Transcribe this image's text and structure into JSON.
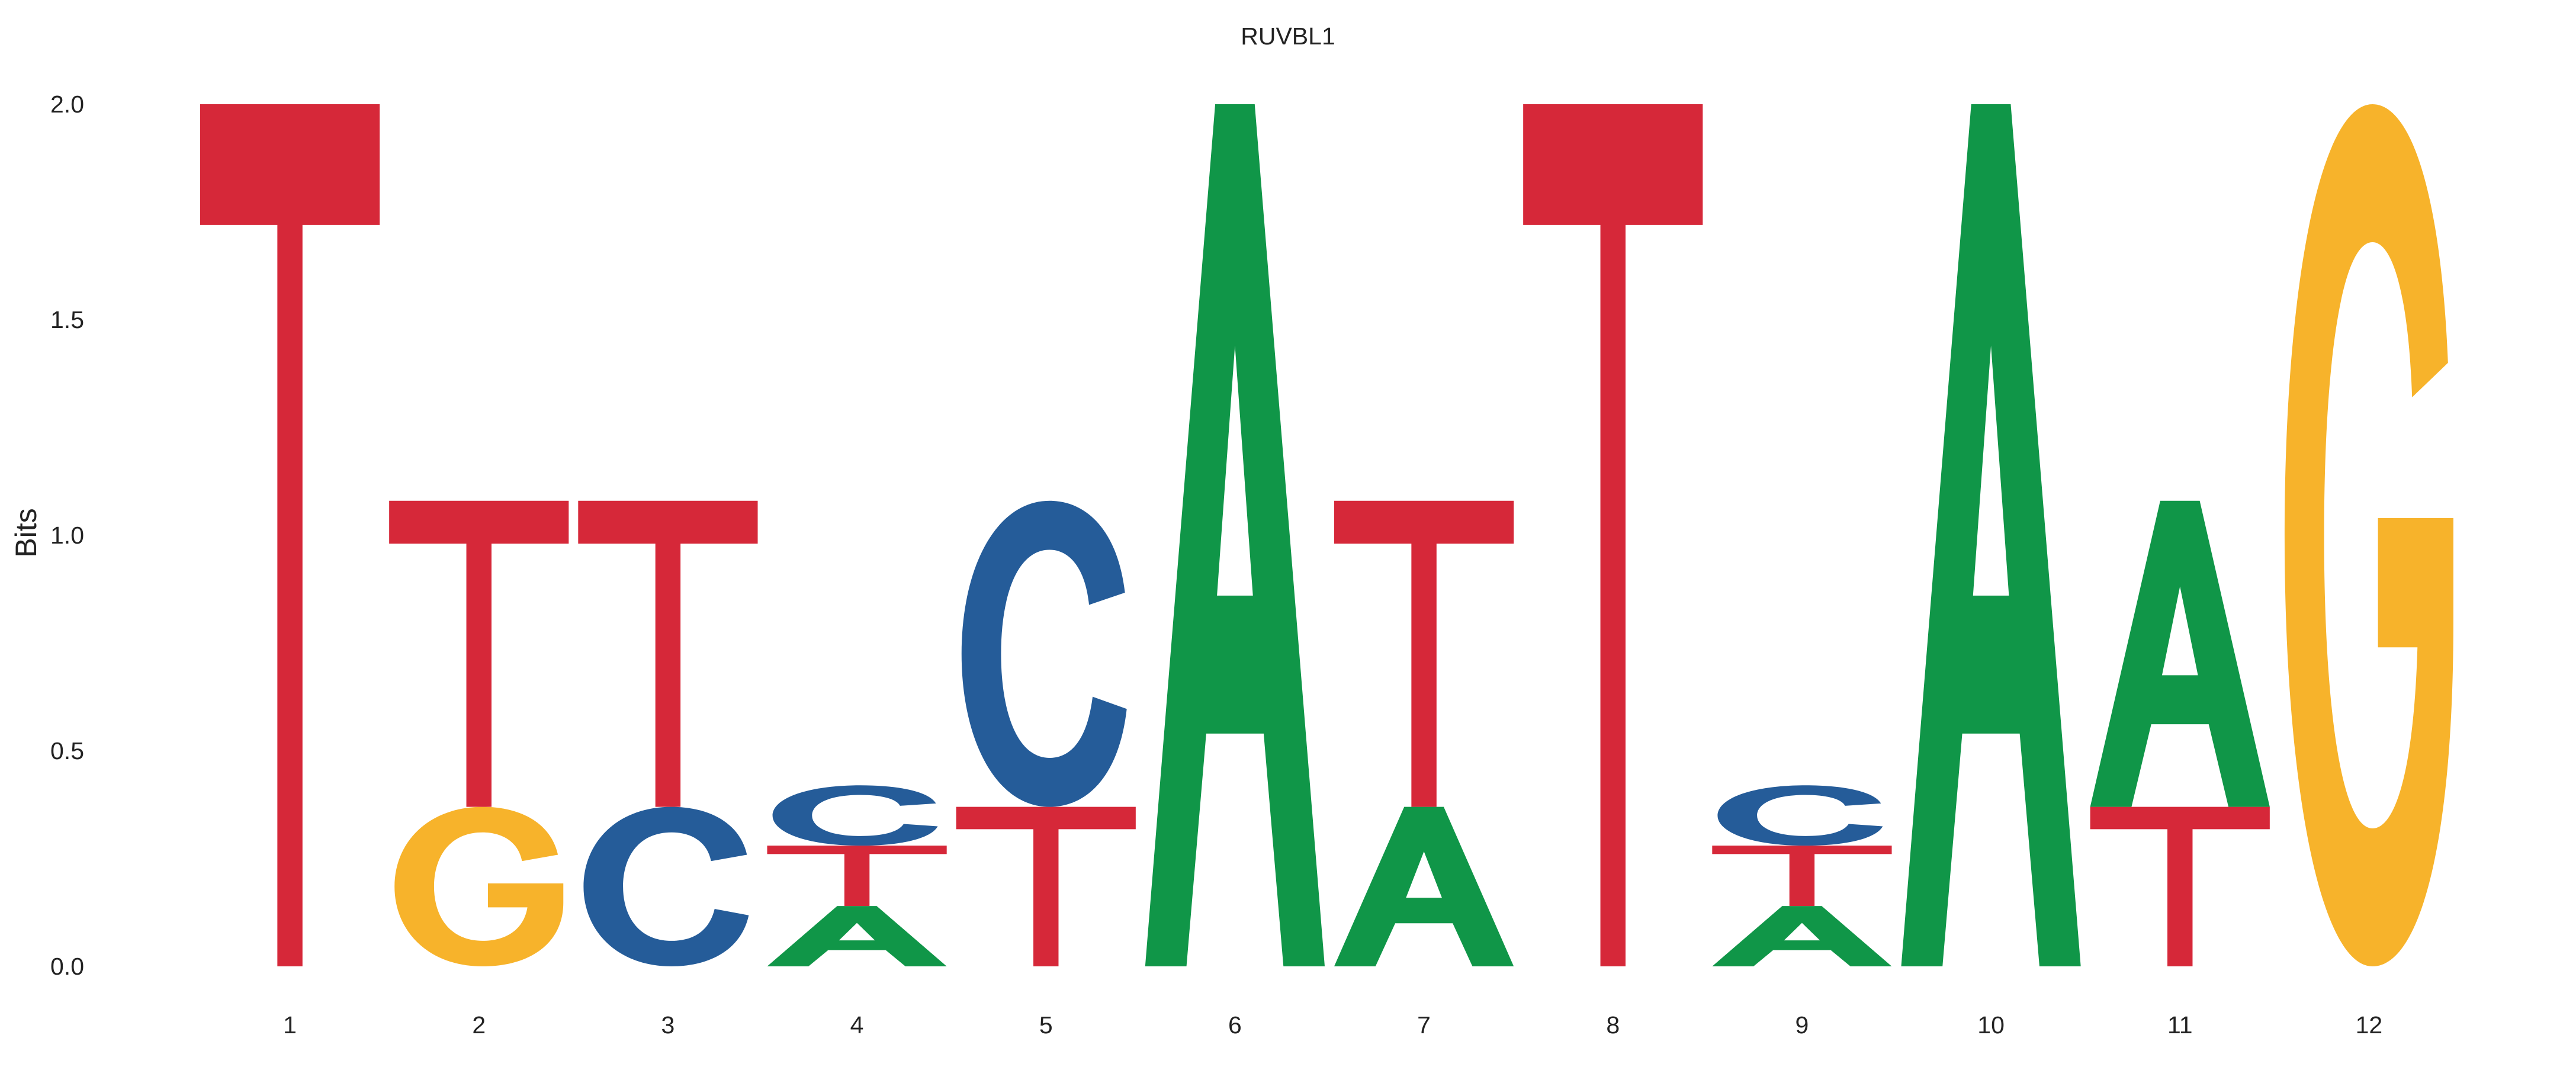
{
  "chart_data": {
    "type": "sequence-logo",
    "title": "RUVBL1",
    "ylabel": "Bits",
    "xlabel": "",
    "ylim": [
      0,
      2.0
    ],
    "yticks": [
      "0.0",
      "0.5",
      "1.0",
      "1.5",
      "2.0"
    ],
    "grid": false,
    "legend": "none",
    "colors": {
      "A": "#109648",
      "C": "#255c99",
      "G": "#f7b32b",
      "T": "#d62839"
    },
    "positions": [
      {
        "pos": "1",
        "stack": [
          {
            "letter": "T",
            "bits": 2.0
          }
        ]
      },
      {
        "pos": "2",
        "stack": [
          {
            "letter": "G",
            "bits": 0.37
          },
          {
            "letter": "T",
            "bits": 0.71
          }
        ]
      },
      {
        "pos": "3",
        "stack": [
          {
            "letter": "C",
            "bits": 0.37
          },
          {
            "letter": "T",
            "bits": 0.71
          }
        ]
      },
      {
        "pos": "4",
        "stack": [
          {
            "letter": "A",
            "bits": 0.14
          },
          {
            "letter": "T",
            "bits": 0.14
          },
          {
            "letter": "C",
            "bits": 0.14
          }
        ]
      },
      {
        "pos": "5",
        "stack": [
          {
            "letter": "T",
            "bits": 0.37
          },
          {
            "letter": "C",
            "bits": 0.71
          }
        ]
      },
      {
        "pos": "6",
        "stack": [
          {
            "letter": "A",
            "bits": 2.0
          }
        ]
      },
      {
        "pos": "7",
        "stack": [
          {
            "letter": "A",
            "bits": 0.37
          },
          {
            "letter": "T",
            "bits": 0.71
          }
        ]
      },
      {
        "pos": "8",
        "stack": [
          {
            "letter": "T",
            "bits": 2.0
          }
        ]
      },
      {
        "pos": "9",
        "stack": [
          {
            "letter": "A",
            "bits": 0.14
          },
          {
            "letter": "T",
            "bits": 0.14
          },
          {
            "letter": "C",
            "bits": 0.14
          }
        ]
      },
      {
        "pos": "10",
        "stack": [
          {
            "letter": "A",
            "bits": 2.0
          }
        ]
      },
      {
        "pos": "11",
        "stack": [
          {
            "letter": "T",
            "bits": 0.37
          },
          {
            "letter": "A",
            "bits": 0.71
          }
        ]
      },
      {
        "pos": "12",
        "stack": [
          {
            "letter": "G",
            "bits": 2.0
          }
        ]
      }
    ]
  }
}
